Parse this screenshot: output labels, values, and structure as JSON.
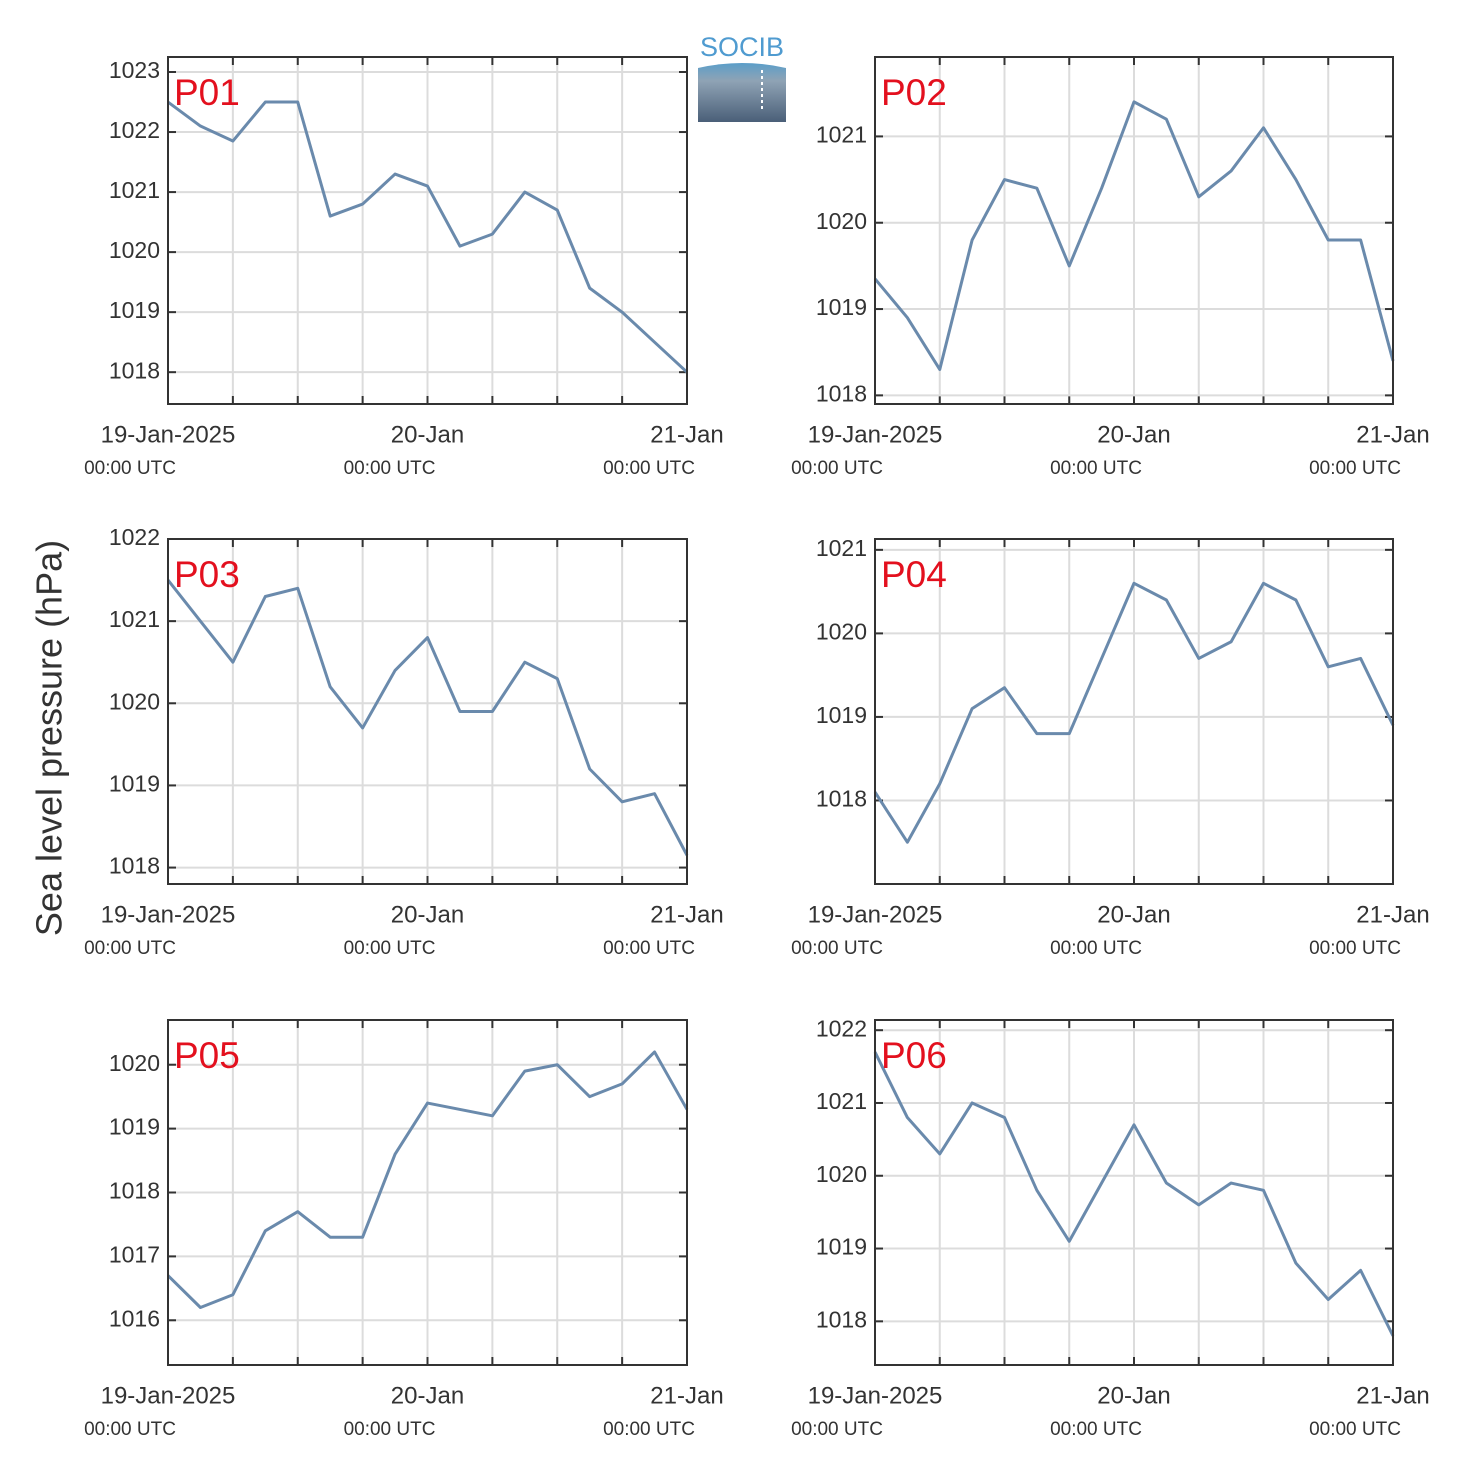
{
  "ylabel": "Sea level pressure (hPa)",
  "logo": "SOCIB",
  "chart_data": [
    {
      "type": "line",
      "title": "P01",
      "color": "#6a8aac",
      "grid": true,
      "x": [
        0,
        3,
        6,
        9,
        12,
        15,
        18,
        21,
        24,
        27,
        30,
        33,
        36,
        39,
        42,
        45,
        48
      ],
      "values": [
        1022.5,
        1022.1,
        1021.85,
        1022.5,
        1022.5,
        1020.6,
        1020.8,
        1021.3,
        1021.1,
        1020.1,
        1020.3,
        1021.0,
        1020.7,
        1019.4,
        1019.0,
        1018.5,
        1018.0
      ],
      "xlim": [
        0,
        48
      ],
      "xticks": [
        0,
        6,
        12,
        18,
        24,
        30,
        36,
        42,
        48
      ],
      "xticklabels": [
        {
          "value": 0,
          "label": "19-Jan-2025",
          "sublabel": "00:00 UTC"
        },
        {
          "value": 24,
          "label": "20-Jan",
          "sublabel": "00:00 UTC"
        },
        {
          "value": 48,
          "label": "21-Jan",
          "sublabel": "00:00 UTC"
        }
      ],
      "ylim": [
        1017.47,
        1023.25
      ],
      "yticks": [
        1018,
        1019,
        1020,
        1021,
        1022,
        1023
      ]
    },
    {
      "type": "line",
      "title": "P02",
      "color": "#6a8aac",
      "grid": true,
      "x": [
        0,
        3,
        6,
        9,
        12,
        15,
        18,
        21,
        24,
        27,
        30,
        33,
        36,
        39,
        42,
        45,
        48
      ],
      "values": [
        1019.35,
        1018.9,
        1018.3,
        1019.8,
        1020.5,
        1020.4,
        1019.5,
        1020.4,
        1021.4,
        1021.2,
        1020.3,
        1020.6,
        1021.1,
        1020.5,
        1019.8,
        1019.8,
        1018.4
      ],
      "xlim": [
        0,
        48
      ],
      "xticks": [
        0,
        6,
        12,
        18,
        24,
        30,
        36,
        42,
        48
      ],
      "xticklabels": [
        {
          "value": 0,
          "label": "19-Jan-2025",
          "sublabel": "00:00 UTC"
        },
        {
          "value": 24,
          "label": "20-Jan",
          "sublabel": "00:00 UTC"
        },
        {
          "value": 48,
          "label": "21-Jan",
          "sublabel": "00:00 UTC"
        }
      ],
      "ylim": [
        1017.9,
        1021.92
      ],
      "yticks": [
        1018,
        1019,
        1020,
        1021
      ]
    },
    {
      "type": "line",
      "title": "P03",
      "color": "#6a8aac",
      "grid": true,
      "x": [
        0,
        3,
        6,
        9,
        12,
        15,
        18,
        21,
        24,
        27,
        30,
        33,
        36,
        39,
        42,
        45,
        48
      ],
      "values": [
        1021.5,
        1021.0,
        1020.5,
        1021.3,
        1021.4,
        1020.2,
        1019.7,
        1020.4,
        1020.8,
        1019.9,
        1019.9,
        1020.5,
        1020.3,
        1019.2,
        1018.8,
        1018.9,
        1018.15
      ],
      "xlim": [
        0,
        48
      ],
      "xticks": [
        0,
        6,
        12,
        18,
        24,
        30,
        36,
        42,
        48
      ],
      "xticklabels": [
        {
          "value": 0,
          "label": "19-Jan-2025",
          "sublabel": "00:00 UTC"
        },
        {
          "value": 24,
          "label": "20-Jan",
          "sublabel": "00:00 UTC"
        },
        {
          "value": 48,
          "label": "21-Jan",
          "sublabel": "00:00 UTC"
        }
      ],
      "ylim": [
        1017.8,
        1022
      ],
      "yticks": [
        1018,
        1019,
        1020,
        1021,
        1022
      ]
    },
    {
      "type": "line",
      "title": "P04",
      "color": "#6a8aac",
      "grid": true,
      "x": [
        0,
        3,
        6,
        9,
        12,
        15,
        18,
        21,
        24,
        27,
        30,
        33,
        36,
        39,
        42,
        45,
        48
      ],
      "values": [
        1018.1,
        1017.5,
        1018.2,
        1019.1,
        1019.35,
        1018.8,
        1018.8,
        1019.7,
        1020.6,
        1020.4,
        1019.7,
        1019.9,
        1020.6,
        1020.4,
        1019.6,
        1019.7,
        1018.9
      ],
      "xlim": [
        0,
        48
      ],
      "xticks": [
        0,
        6,
        12,
        18,
        24,
        30,
        36,
        42,
        48
      ],
      "xticklabels": [
        {
          "value": 0,
          "label": "19-Jan-2025",
          "sublabel": "00:00 UTC"
        },
        {
          "value": 24,
          "label": "20-Jan",
          "sublabel": "00:00 UTC"
        },
        {
          "value": 48,
          "label": "21-Jan",
          "sublabel": "00:00 UTC"
        }
      ],
      "ylim": [
        1017.0,
        1021.13
      ],
      "yticks": [
        1018,
        1019,
        1020,
        1021
      ]
    },
    {
      "type": "line",
      "title": "P05",
      "color": "#6a8aac",
      "grid": true,
      "x": [
        0,
        3,
        6,
        9,
        12,
        15,
        18,
        21,
        24,
        27,
        30,
        33,
        36,
        39,
        42,
        45,
        48
      ],
      "values": [
        1016.7,
        1016.2,
        1016.4,
        1017.4,
        1017.7,
        1017.3,
        1017.3,
        1018.6,
        1019.4,
        1019.3,
        1019.2,
        1019.9,
        1020.0,
        1019.5,
        1019.7,
        1020.2,
        1019.3
      ],
      "xlim": [
        0,
        48
      ],
      "xticks": [
        0,
        6,
        12,
        18,
        24,
        30,
        36,
        42,
        48
      ],
      "xticklabels": [
        {
          "value": 0,
          "label": "19-Jan-2025",
          "sublabel": "00:00 UTC"
        },
        {
          "value": 24,
          "label": "20-Jan",
          "sublabel": "00:00 UTC"
        },
        {
          "value": 48,
          "label": "21-Jan",
          "sublabel": "00:00 UTC"
        }
      ],
      "ylim": [
        1015.3,
        1020.7
      ],
      "yticks": [
        1016,
        1017,
        1018,
        1019,
        1020
      ]
    },
    {
      "type": "line",
      "title": "P06",
      "color": "#6a8aac",
      "grid": true,
      "x": [
        0,
        3,
        6,
        9,
        12,
        15,
        18,
        21,
        24,
        27,
        30,
        33,
        36,
        39,
        42,
        45,
        48
      ],
      "values": [
        1021.7,
        1020.8,
        1020.3,
        1021.0,
        1020.8,
        1019.8,
        1019.1,
        1019.9,
        1020.7,
        1019.9,
        1019.6,
        1019.9,
        1019.8,
        1018.8,
        1018.3,
        1018.7,
        1017.8
      ],
      "xlim": [
        0,
        48
      ],
      "xticks": [
        0,
        6,
        12,
        18,
        24,
        30,
        36,
        42,
        48
      ],
      "xticklabels": [
        {
          "value": 0,
          "label": "19-Jan-2025",
          "sublabel": "00:00 UTC"
        },
        {
          "value": 24,
          "label": "20-Jan",
          "sublabel": "00:00 UTC"
        },
        {
          "value": 48,
          "label": "21-Jan",
          "sublabel": "00:00 UTC"
        }
      ],
      "ylim": [
        1017.4,
        1022.14
      ],
      "yticks": [
        1018,
        1019,
        1020,
        1021,
        1022
      ]
    }
  ]
}
